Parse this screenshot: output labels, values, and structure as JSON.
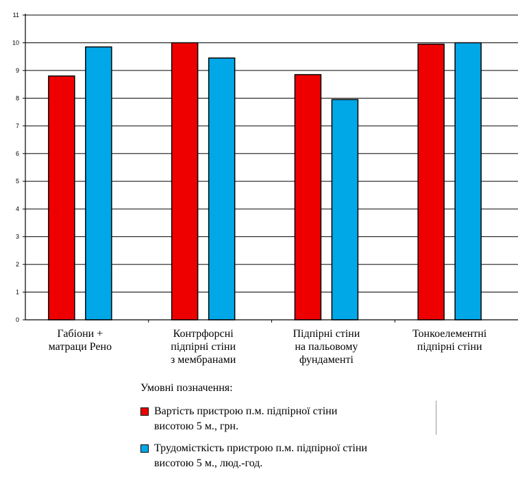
{
  "chart_data": {
    "type": "bar",
    "categories": [
      [
        "Габіони +",
        "матраци Рено"
      ],
      [
        "Контрфорсні",
        "підпірні стіни",
        "з мембранами"
      ],
      [
        "Підпірні стіни",
        "на пальовому",
        "фундаменті"
      ],
      [
        "Тонкоелементні",
        "підпірні стіни"
      ]
    ],
    "series": [
      {
        "name": "Вартість пристрою п.м. підпірної стіни висотою 5 м., грн.",
        "color": "#ee0000",
        "values": [
          8.8,
          10.0,
          8.85,
          9.95
        ]
      },
      {
        "name": "Трудомісткість пристрою п.м. підпірної стіни висотою 5 м., люд.-год.",
        "color": "#00a8e8",
        "values": [
          9.85,
          9.45,
          7.95,
          10.0
        ]
      }
    ],
    "ylim": [
      0,
      11
    ],
    "yticks": [
      0,
      1,
      2,
      3,
      4,
      5,
      6,
      7,
      8,
      9,
      10,
      11
    ],
    "grid": true,
    "legend_position": "bottom"
  },
  "legend": {
    "title": "Умовні позначення:",
    "items": [
      {
        "lines": [
          "Вартість пристрою п.м. підпірної стіни",
          "висотою 5 м., грн."
        ],
        "color": "#ee0000"
      },
      {
        "lines": [
          "Трудомісткість пристрою п.м. підпірної стіни",
          "висотою 5 м., люд.-год."
        ],
        "color": "#00a8e8"
      }
    ]
  }
}
